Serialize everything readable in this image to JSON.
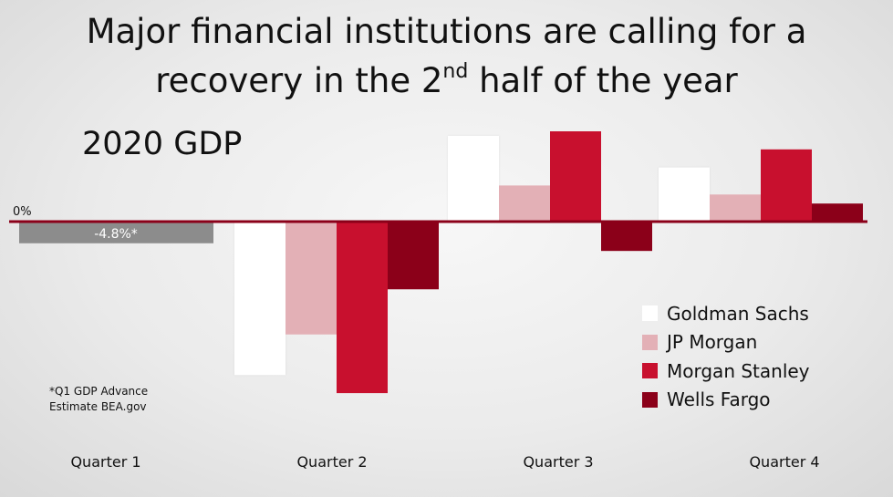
{
  "headline": {
    "line1": "Major financial institutions are calling for a",
    "line2_pre": "recovery in the 2",
    "line2_sup": "nd",
    "line2_post": " half of the year"
  },
  "footnote": {
    "line1": "*Q1 GDP Advance",
    "line2": "Estimate BEA.gov"
  },
  "chart_data": {
    "type": "bar",
    "title": "2020 GDP",
    "categories": [
      "Quarter 1",
      "Quarter 2",
      "Quarter 3",
      "Quarter 4"
    ],
    "zero_label": "0%",
    "q1_actual": {
      "value": -4.8,
      "label": "-4.8%*",
      "color": "#8c8c8c"
    },
    "series": [
      {
        "name": "Goldman Sachs",
        "color": "#ffffff",
        "values": [
          null,
          -34.0,
          19.0,
          12.0
        ]
      },
      {
        "name": "JP Morgan",
        "color": "#e3b0b6",
        "values": [
          null,
          -25.0,
          8.0,
          6.0
        ]
      },
      {
        "name": "Morgan Stanley",
        "color": "#c8102e",
        "values": [
          null,
          -38.0,
          20.0,
          16.0
        ]
      },
      {
        "name": "Wells Fargo",
        "color": "#8b0019",
        "values": [
          null,
          -15.0,
          -6.5,
          4.0
        ]
      }
    ],
    "legend_position": "bottom-right",
    "grid": false
  }
}
